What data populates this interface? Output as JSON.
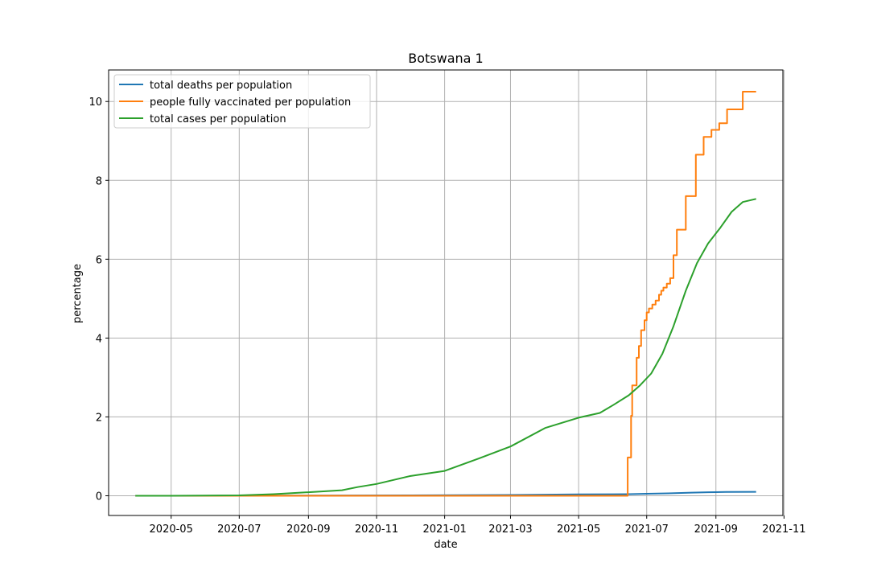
{
  "chart_data": {
    "type": "line",
    "title": "Botswana 1",
    "xlabel": "date",
    "ylabel": "percentage",
    "xlim": [
      "2020-03-06",
      "2021-10-31"
    ],
    "ylim": [
      -0.5,
      10.8
    ],
    "x_ticks": [
      "2020-05-01",
      "2020-07-01",
      "2020-09-01",
      "2020-11-01",
      "2021-01-01",
      "2021-03-01",
      "2021-05-01",
      "2021-07-01",
      "2021-09-01",
      "2021-11-01"
    ],
    "x_tick_labels": [
      "2020-05",
      "2020-07",
      "2020-09",
      "2020-11",
      "2021-01",
      "2021-03",
      "2021-05",
      "2021-07",
      "2021-09",
      "2021-11"
    ],
    "y_ticks": [
      0,
      2,
      4,
      6,
      8,
      10
    ],
    "y_tick_labels": [
      "0",
      "2",
      "4",
      "6",
      "8",
      "10"
    ],
    "grid": true,
    "legend_position": "top-left",
    "series": [
      {
        "name": "total deaths per population",
        "color": "#1f77b4",
        "x": [
          "2020-03-30",
          "2020-06-01",
          "2020-09-01",
          "2020-12-01",
          "2021-03-01",
          "2021-05-01",
          "2021-06-15",
          "2021-07-01",
          "2021-07-20",
          "2021-08-10",
          "2021-08-25",
          "2021-09-10",
          "2021-10-07"
        ],
        "y": [
          0.0,
          0.0,
          0.005,
          0.01,
          0.02,
          0.035,
          0.04,
          0.05,
          0.06,
          0.08,
          0.09,
          0.095,
          0.1
        ]
      },
      {
        "name": "people fully vaccinated per population",
        "color": "#ff7f0e",
        "step": true,
        "x": [
          "2020-03-30",
          "2021-06-14",
          "2021-06-14",
          "2021-06-17",
          "2021-06-18",
          "2021-06-22",
          "2021-06-24",
          "2021-06-26",
          "2021-06-29",
          "2021-07-01",
          "2021-07-03",
          "2021-07-06",
          "2021-07-09",
          "2021-07-12",
          "2021-07-14",
          "2021-07-16",
          "2021-07-19",
          "2021-07-22",
          "2021-07-25",
          "2021-07-28",
          "2021-07-31",
          "2021-08-03",
          "2021-08-05",
          "2021-08-07",
          "2021-08-14",
          "2021-08-21",
          "2021-08-28",
          "2021-09-04",
          "2021-09-11",
          "2021-09-18",
          "2021-09-25",
          "2021-10-01",
          "2021-10-07"
        ],
        "y": [
          0.0,
          0.0,
          0.97,
          2.03,
          2.8,
          3.5,
          3.8,
          4.2,
          4.45,
          4.65,
          4.75,
          4.85,
          4.95,
          5.1,
          5.2,
          5.28,
          5.38,
          5.52,
          6.1,
          6.75,
          6.75,
          6.75,
          7.6,
          7.6,
          8.65,
          9.1,
          9.28,
          9.45,
          9.8,
          9.8,
          10.25,
          10.25,
          10.25
        ]
      },
      {
        "name": "total cases per population",
        "color": "#2ca02c",
        "x": [
          "2020-03-30",
          "2020-05-01",
          "2020-07-01",
          "2020-08-01",
          "2020-09-01",
          "2020-10-01",
          "2020-10-15",
          "2020-11-01",
          "2020-12-01",
          "2021-01-01",
          "2021-02-01",
          "2021-03-01",
          "2021-04-01",
          "2021-05-01",
          "2021-05-20",
          "2021-06-01",
          "2021-06-15",
          "2021-06-25",
          "2021-07-05",
          "2021-07-15",
          "2021-07-25",
          "2021-08-05",
          "2021-08-15",
          "2021-08-25",
          "2021-09-05",
          "2021-09-15",
          "2021-09-25",
          "2021-10-07"
        ],
        "y": [
          0.0,
          0.0,
          0.01,
          0.04,
          0.09,
          0.14,
          0.22,
          0.3,
          0.5,
          0.63,
          0.95,
          1.25,
          1.72,
          1.98,
          2.1,
          2.3,
          2.55,
          2.8,
          3.1,
          3.6,
          4.3,
          5.2,
          5.9,
          6.4,
          6.8,
          7.2,
          7.45,
          7.53
        ]
      }
    ]
  }
}
